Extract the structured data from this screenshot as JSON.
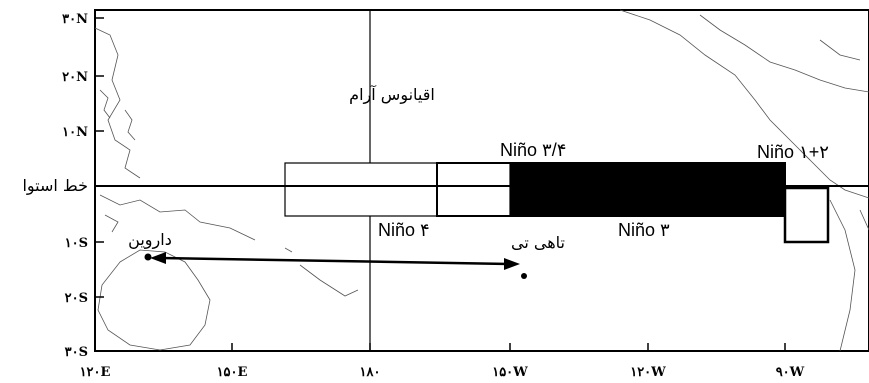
{
  "map": {
    "y_tick_labels": [
      "۳۰N",
      "۲۰N",
      "۱۰N",
      "خط استوا",
      "۱۰S",
      "۲۰S",
      "۳۰S"
    ],
    "x_tick_labels": [
      "۱۲۰E",
      "۱۵۰E",
      "۱۸۰",
      "۱۵۰W",
      "۱۲۰W",
      "۹۰W"
    ],
    "ocean_label": "اقیانوس آرام",
    "regions": [
      {
        "label": "Niño ۴",
        "fill": "#ffffff"
      },
      {
        "label": "Niño ۳/۴",
        "fill": "#ffffff"
      },
      {
        "label": "Niño ۳",
        "fill": "#000000"
      },
      {
        "label": "Niño ۱+۲",
        "fill": "#ffffff"
      }
    ],
    "places": {
      "darwin": "داروین",
      "tahiti": "تاهی تی"
    },
    "colors": {
      "frame": "#000000",
      "coastline": "#555555",
      "background": "#ffffff"
    }
  }
}
